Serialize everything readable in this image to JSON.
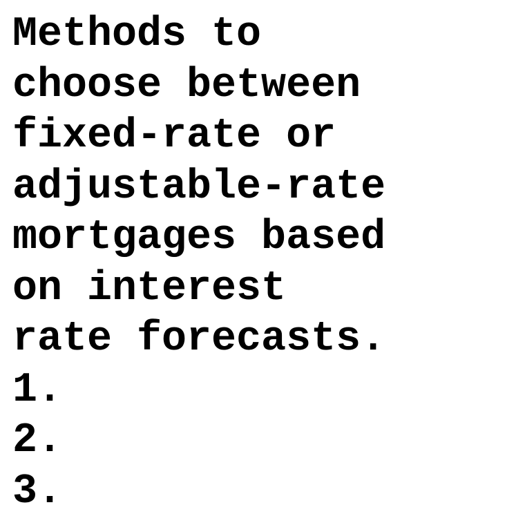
{
  "document": {
    "title_lines": [
      "Methods to",
      "choose between",
      "fixed-rate or",
      "adjustable-rate",
      "mortgages based",
      "on interest",
      "rate forecasts."
    ],
    "list_items": [
      "1.",
      "2.",
      "3."
    ]
  },
  "colors": {
    "text": "#000000",
    "background": "#ffffff"
  }
}
